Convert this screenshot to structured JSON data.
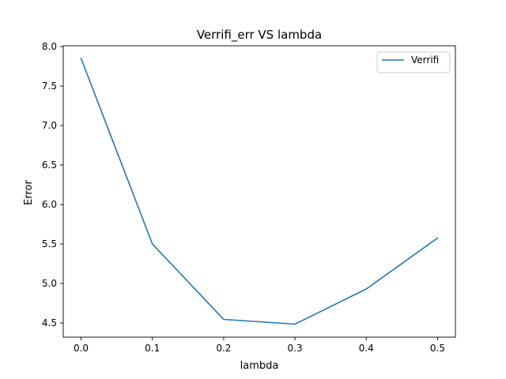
{
  "chart_data": {
    "type": "line",
    "title": "Verrifi_err VS lambda",
    "xlabel": "lambda",
    "ylabel": "Error",
    "x": [
      0.0,
      0.1,
      0.2,
      0.3,
      0.4,
      0.5
    ],
    "series": [
      {
        "name": "Verrifi",
        "values": [
          7.85,
          5.5,
          4.545,
          4.485,
          4.93,
          5.575
        ],
        "color": "#1f77b4"
      }
    ],
    "xlim": [
      -0.025,
      0.525
    ],
    "ylim": [
      4.32,
      8.01
    ],
    "xticks": [
      "0.0",
      "0.1",
      "0.2",
      "0.3",
      "0.4",
      "0.5"
    ],
    "yticks": [
      "4.5",
      "5.0",
      "5.5",
      "6.0",
      "6.5",
      "7.0",
      "7.5",
      "8.0"
    ],
    "grid": false,
    "legend_position": "top-right"
  }
}
